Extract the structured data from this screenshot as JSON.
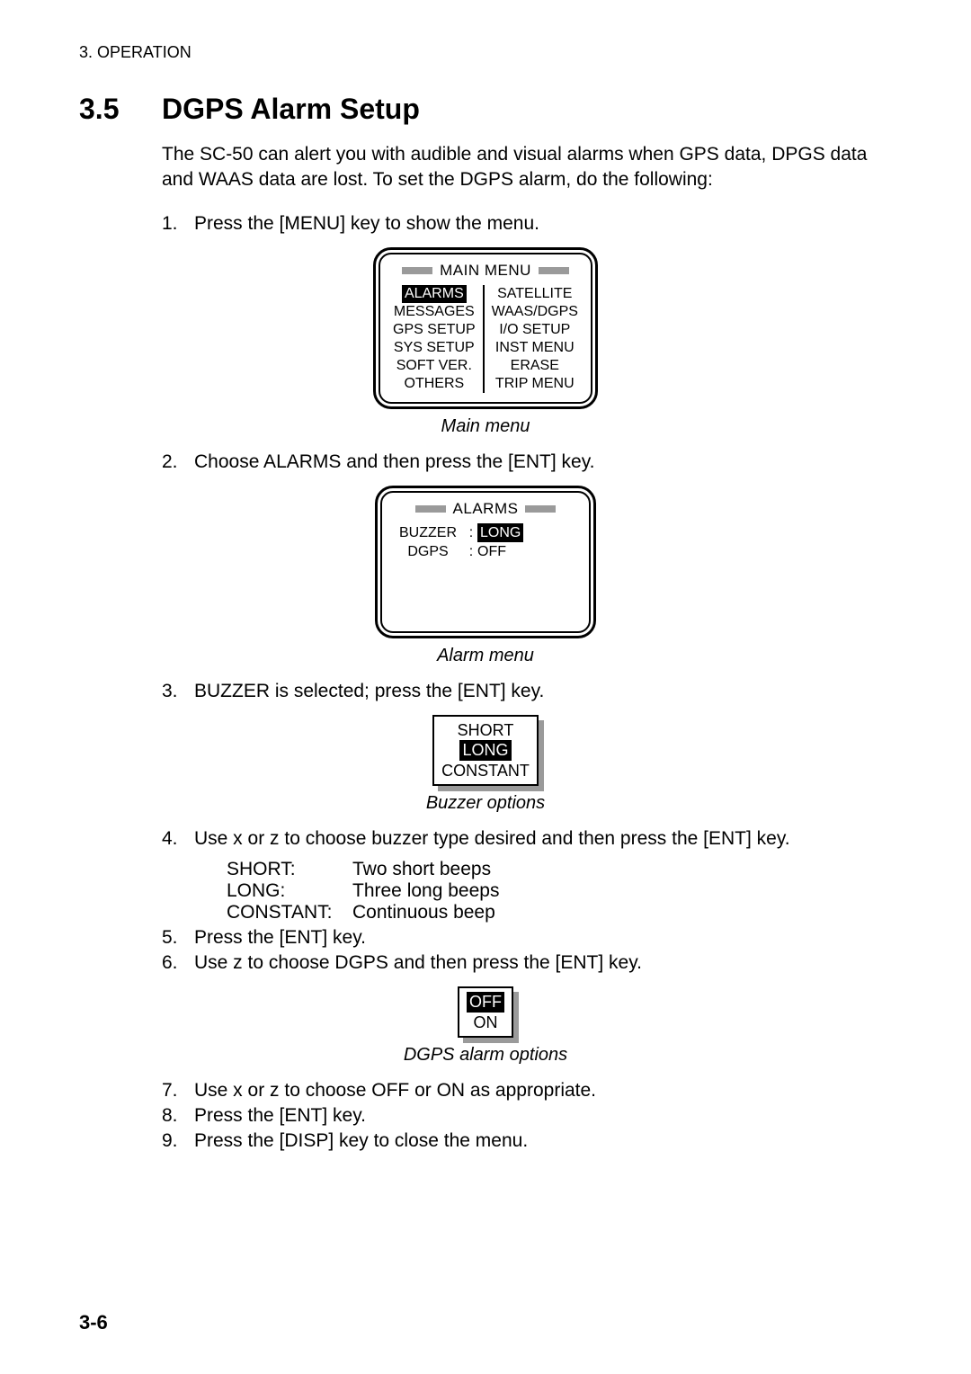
{
  "header": "3. OPERATION",
  "section": {
    "number": "3.5",
    "title": "DGPS Alarm Setup"
  },
  "intro": "The SC-50 can alert you with audible and visual alarms when GPS data, DPGS data and WAAS data are lost. To set the DGPS alarm, do the following:",
  "steps": {
    "s1": "Press the [MENU] key to show the menu.",
    "s2": "Choose ALARMS and then press the [ENT] key.",
    "s3": "BUZZER is selected; press the [ENT] key.",
    "s4": "Use  x  or  z  to choose buzzer type desired and then press the [ENT] key.",
    "s5": "Press the [ENT] key.",
    "s6": "Use  z  to choose DGPS and then press the [ENT] key.",
    "s7": "Use  x  or  z  to choose OFF or ON as appropriate.",
    "s8": "Press the [ENT] key.",
    "s9": "Press the [DISP] key to close the menu."
  },
  "main_menu": {
    "title": "MAIN MENU",
    "left": [
      "ALARMS",
      "MESSAGES",
      "GPS SETUP",
      "SYS SETUP",
      "SOFT VER.",
      "OTHERS"
    ],
    "right": [
      "SATELLITE",
      "WAAS/DGPS",
      "I/O SETUP",
      "INST MENU",
      "ERASE",
      "TRIP MENU"
    ],
    "selected": "ALARMS",
    "caption": "Main menu"
  },
  "alarm_menu": {
    "title": "ALARMS",
    "rows": [
      {
        "key": "BUZZER",
        "value": "LONG",
        "selected": true
      },
      {
        "key": "DGPS",
        "value": "OFF",
        "selected": false
      }
    ],
    "caption": "Alarm menu"
  },
  "buzzer_options": {
    "items": [
      "SHORT",
      "LONG",
      "CONSTANT"
    ],
    "selected": "LONG",
    "caption": "Buzzer options"
  },
  "buzzer_defs": [
    {
      "key": "SHORT:",
      "val": "Two short beeps"
    },
    {
      "key": "LONG:",
      "val": "Three long beeps"
    },
    {
      "key": "CONSTANT:",
      "val": "Continuous beep"
    }
  ],
  "dgps_options": {
    "items": [
      "OFF",
      "ON"
    ],
    "selected": "OFF",
    "caption": "DGPS alarm options"
  },
  "page_number": "3-6",
  "colors": {
    "highlight_bg": "#000000",
    "highlight_fg": "#ffffff",
    "title_bar": "#9a9a9a",
    "shadow": "#9a9a9a"
  }
}
